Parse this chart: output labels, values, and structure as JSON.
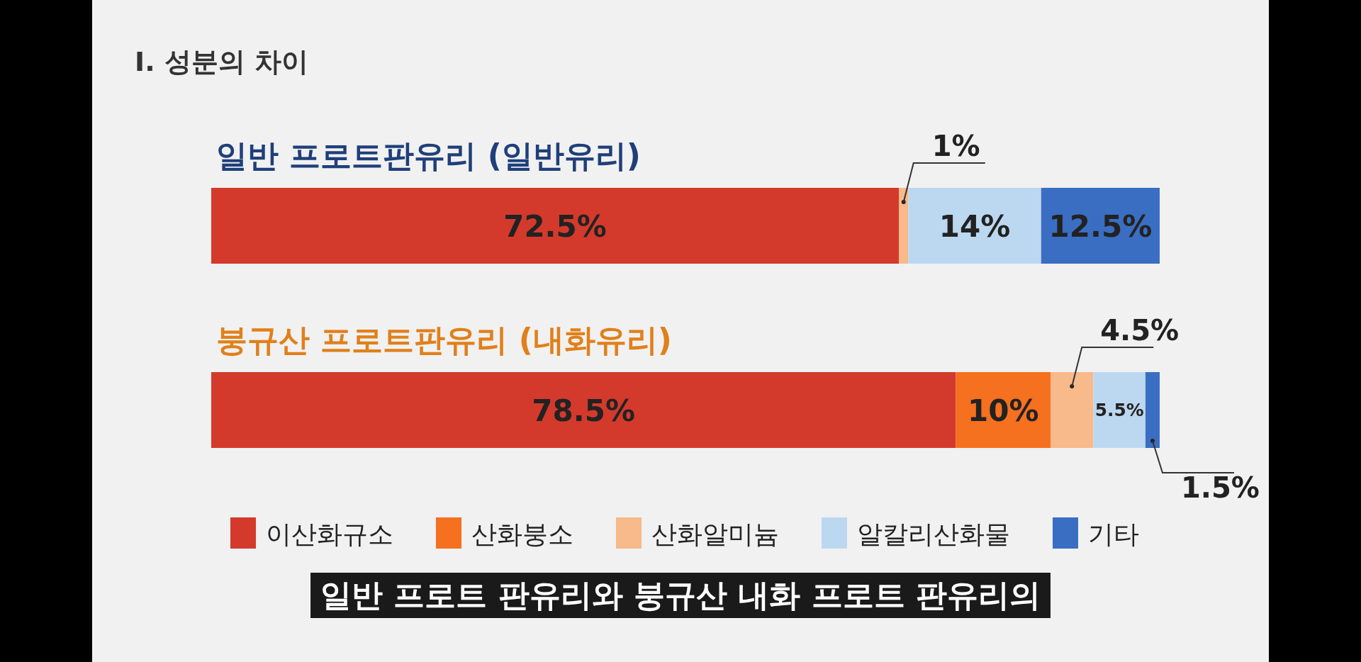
{
  "chart_data": {
    "type": "bar",
    "orientation": "horizontal",
    "stacked": true,
    "title": "Ⅰ. 성분의 차이",
    "categories": [
      "일반 프로트판유리 (일반유리)",
      "붕규산 프로트판유리 (내화유리)"
    ],
    "series": [
      {
        "name": "이산화규소",
        "color": "#d33a2c",
        "values": [
          72.5,
          78.5
        ],
        "value_labels": [
          "72.5%",
          "78.5%"
        ]
      },
      {
        "name": "산화붕소",
        "color": "#f5701f",
        "values": [
          null,
          10
        ],
        "value_labels": [
          null,
          "10%"
        ]
      },
      {
        "name": "산화알미늄",
        "color": "#f8b98b",
        "values": [
          1,
          4.5
        ],
        "value_labels": [
          "1%",
          "4.5%"
        ]
      },
      {
        "name": "알칼리산화물",
        "color": "#bcd8f0",
        "values": [
          14,
          5.5
        ],
        "value_labels": [
          "14%",
          "5.5%"
        ]
      },
      {
        "name": "기타",
        "color": "#3a6ec2",
        "values": [
          12.5,
          1.5
        ],
        "value_labels": [
          "12.5%",
          "1.5%"
        ]
      }
    ],
    "xlim": [
      0,
      100
    ],
    "legend": "bottom",
    "annotations": [
      "일반 프로트 판유리와 붕규산 내화 프로트 판유리의"
    ]
  }
}
